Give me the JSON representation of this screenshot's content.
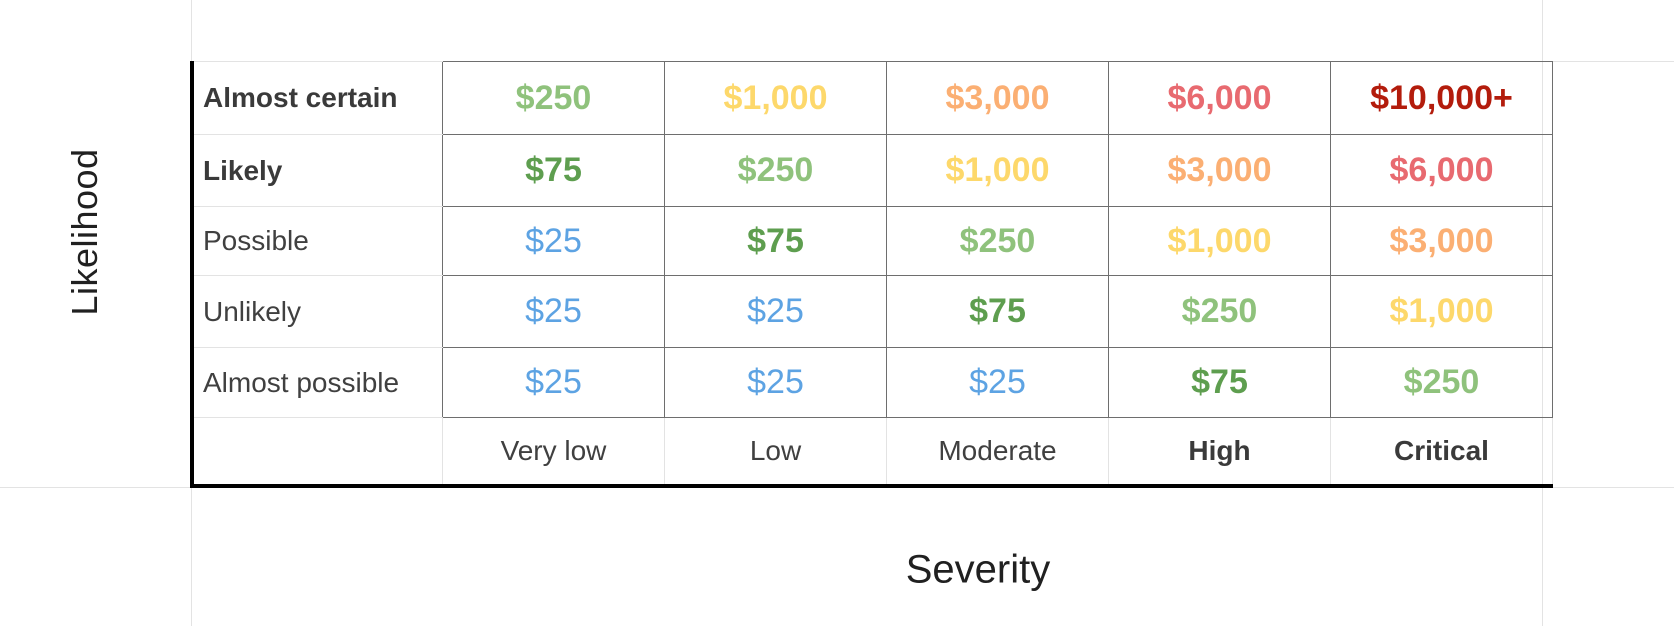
{
  "axes": {
    "y_title": "Likelihood",
    "x_title": "Severity"
  },
  "colors": {
    "blue": "#5da3e3",
    "dark_green": "#5e9e4f",
    "light_green": "#8fc27c",
    "yellow": "#fdd86b",
    "orange": "#fbaf73",
    "red": "#e86a70",
    "dark_red": "#b31c0c"
  },
  "rows": [
    {
      "label": "Almost certain",
      "bold": true,
      "cells": [
        {
          "value": "$250",
          "color": "light_green",
          "bold": true
        },
        {
          "value": "$1,000",
          "color": "yellow",
          "bold": true
        },
        {
          "value": "$3,000",
          "color": "orange",
          "bold": true
        },
        {
          "value": "$6,000",
          "color": "red",
          "bold": true
        },
        {
          "value": "$10,000+",
          "color": "dark_red",
          "bold": true
        }
      ]
    },
    {
      "label": "Likely",
      "bold": true,
      "cells": [
        {
          "value": "$75",
          "color": "dark_green",
          "bold": true
        },
        {
          "value": "$250",
          "color": "light_green",
          "bold": true
        },
        {
          "value": "$1,000",
          "color": "yellow",
          "bold": true
        },
        {
          "value": "$3,000",
          "color": "orange",
          "bold": true
        },
        {
          "value": "$6,000",
          "color": "red",
          "bold": true
        }
      ]
    },
    {
      "label": "Possible",
      "bold": false,
      "cells": [
        {
          "value": "$25",
          "color": "blue",
          "bold": false
        },
        {
          "value": "$75",
          "color": "dark_green",
          "bold": true
        },
        {
          "value": "$250",
          "color": "light_green",
          "bold": true
        },
        {
          "value": "$1,000",
          "color": "yellow",
          "bold": true
        },
        {
          "value": "$3,000",
          "color": "orange",
          "bold": true
        }
      ]
    },
    {
      "label": "Unlikely",
      "bold": false,
      "cells": [
        {
          "value": "$25",
          "color": "blue",
          "bold": false
        },
        {
          "value": "$25",
          "color": "blue",
          "bold": false
        },
        {
          "value": "$75",
          "color": "dark_green",
          "bold": true
        },
        {
          "value": "$250",
          "color": "light_green",
          "bold": true
        },
        {
          "value": "$1,000",
          "color": "yellow",
          "bold": true
        }
      ]
    },
    {
      "label": "Almost possible",
      "bold": false,
      "cells": [
        {
          "value": "$25",
          "color": "blue",
          "bold": false
        },
        {
          "value": "$25",
          "color": "blue",
          "bold": false
        },
        {
          "value": "$25",
          "color": "blue",
          "bold": false
        },
        {
          "value": "$75",
          "color": "dark_green",
          "bold": true
        },
        {
          "value": "$250",
          "color": "light_green",
          "bold": true
        }
      ]
    }
  ],
  "columns": [
    {
      "label": "Very low",
      "bold": false
    },
    {
      "label": "Low",
      "bold": false
    },
    {
      "label": "Moderate",
      "bold": false
    },
    {
      "label": "High",
      "bold": true
    },
    {
      "label": "Critical",
      "bold": true
    }
  ]
}
